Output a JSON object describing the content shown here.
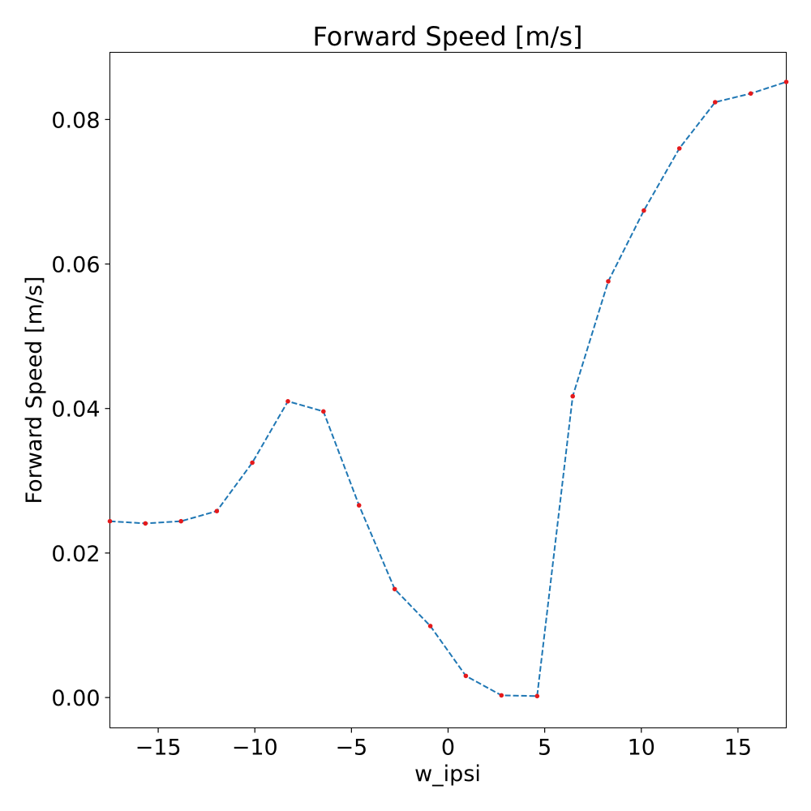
{
  "chart_data": {
    "type": "line",
    "title": "Forward Speed [m/s]",
    "xlabel": "w_ipsi",
    "ylabel": "Forward Speed [m/s]",
    "xlim": [
      -17.5,
      17.5
    ],
    "ylim": [
      -0.0042,
      0.0893
    ],
    "grid": false,
    "x_ticks": [
      -15,
      -10,
      -5,
      0,
      5,
      10,
      15
    ],
    "x_tick_labels": [
      "−15",
      "−10",
      "−5",
      "0",
      "5",
      "10",
      "15"
    ],
    "y_ticks": [
      0.0,
      0.02,
      0.04,
      0.06,
      0.08
    ],
    "y_tick_labels": [
      "0.00",
      "0.02",
      "0.04",
      "0.06",
      "0.08"
    ],
    "line_color": "#1f77b4",
    "marker_color": "#e41a1c",
    "series": [
      {
        "x": [
          -17.5,
          -15.66,
          -13.82,
          -11.97,
          -10.13,
          -8.29,
          -6.45,
          -4.61,
          -2.76,
          -0.92,
          0.92,
          2.76,
          4.61,
          6.45,
          8.29,
          10.13,
          11.97,
          13.82,
          15.66,
          17.5
        ],
        "values": [
          0.0244,
          0.0241,
          0.0244,
          0.0258,
          0.0325,
          0.041,
          0.0396,
          0.0266,
          0.015,
          0.0099,
          0.003,
          0.0003,
          0.0002,
          0.0417,
          0.0576,
          0.0674,
          0.076,
          0.0824,
          0.0836,
          0.0852
        ]
      }
    ]
  }
}
